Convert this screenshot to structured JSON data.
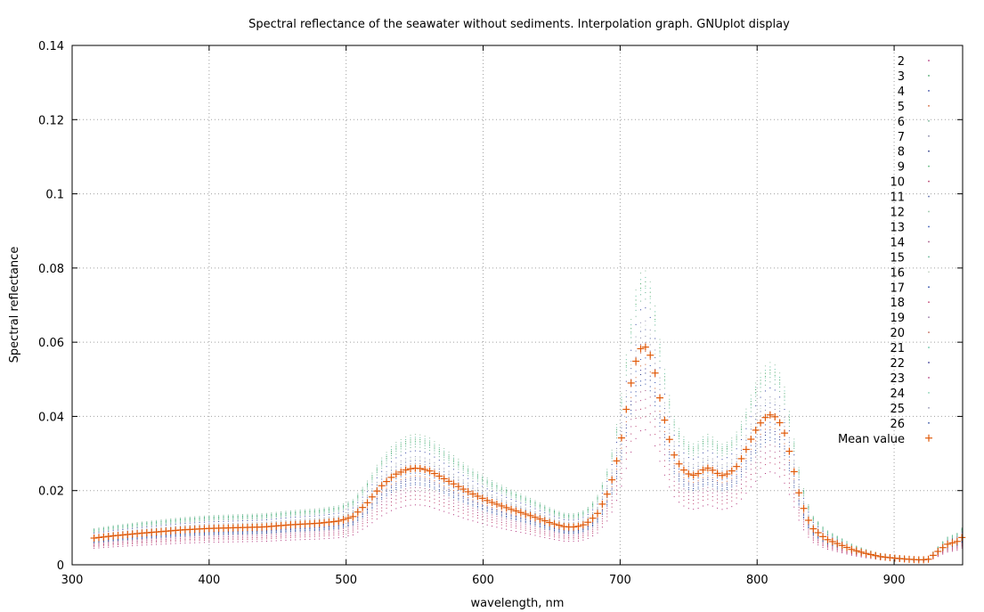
{
  "chart_data": {
    "type": "scatter",
    "title": "Spectral reflectance of the seawater without sediments. Interpolation graph. GNUplot display",
    "xlabel": "wavelength, nm",
    "ylabel": "Spectral reflectance",
    "xlim": [
      300,
      950
    ],
    "ylim": [
      0,
      0.14
    ],
    "x_ticks": [
      300,
      400,
      500,
      600,
      700,
      800,
      900
    ],
    "y_ticks": [
      0,
      0.02,
      0.04,
      0.06,
      0.08,
      0.1,
      0.12,
      0.14
    ],
    "x_tick_labels": [
      "300",
      "400",
      "500",
      "600",
      "700",
      "800",
      "900"
    ],
    "y_tick_labels": [
      "0",
      "0.02",
      "0.04",
      "0.06",
      "0.08",
      "0.1",
      "0.12",
      "0.14"
    ],
    "grid": true,
    "legend_position": "top-right",
    "mean_color": "#e05a0a",
    "x_step_nm": 3.5,
    "mean_series": {
      "name": "Mean value",
      "anchors_x": [
        316,
        330,
        350,
        380,
        400,
        420,
        440,
        460,
        480,
        495,
        505,
        515,
        525,
        535,
        545,
        552,
        560,
        575,
        590,
        605,
        620,
        635,
        650,
        660,
        668,
        675,
        683,
        690,
        695,
        700,
        705,
        710,
        714,
        718,
        722,
        726,
        730,
        735,
        740,
        745,
        750,
        755,
        760,
        765,
        770,
        775,
        780,
        785,
        790,
        795,
        800,
        805,
        810,
        815,
        820,
        825,
        830,
        835,
        840,
        850,
        860,
        870,
        880,
        890,
        900,
        910,
        920,
        925,
        930,
        935,
        940,
        945,
        950
      ],
      "anchors_y": [
        0.0072,
        0.0078,
        0.0085,
        0.0094,
        0.0098,
        0.01,
        0.0102,
        0.0108,
        0.0112,
        0.0118,
        0.013,
        0.0165,
        0.021,
        0.0242,
        0.0258,
        0.0261,
        0.0255,
        0.0225,
        0.0195,
        0.017,
        0.015,
        0.0132,
        0.0112,
        0.0102,
        0.0102,
        0.011,
        0.0135,
        0.0185,
        0.024,
        0.032,
        0.043,
        0.053,
        0.058,
        0.059,
        0.0565,
        0.051,
        0.043,
        0.035,
        0.029,
        0.026,
        0.0245,
        0.024,
        0.0255,
        0.0262,
        0.0248,
        0.024,
        0.0248,
        0.0265,
        0.0295,
        0.0335,
        0.037,
        0.0395,
        0.0405,
        0.0395,
        0.0355,
        0.0285,
        0.02,
        0.014,
        0.01,
        0.007,
        0.0055,
        0.004,
        0.003,
        0.0022,
        0.0018,
        0.0015,
        0.0013,
        0.0015,
        0.003,
        0.0045,
        0.0058,
        0.006,
        0.0075
      ]
    },
    "series": [
      {
        "name": "2",
        "color": "#b0307a"
      },
      {
        "name": "3",
        "color": "#40a060"
      },
      {
        "name": "4",
        "color": "#3040a0"
      },
      {
        "name": "5",
        "color": "#d06030"
      },
      {
        "name": "6",
        "color": "#70b090"
      },
      {
        "name": "7",
        "color": "#8080a0"
      },
      {
        "name": "8",
        "color": "#203080"
      },
      {
        "name": "9",
        "color": "#50b070"
      },
      {
        "name": "10",
        "color": "#b03060"
      },
      {
        "name": "11",
        "color": "#5060a0"
      },
      {
        "name": "12",
        "color": "#90c0a0"
      },
      {
        "name": "13",
        "color": "#3050b0"
      },
      {
        "name": "14",
        "color": "#a05080"
      },
      {
        "name": "15",
        "color": "#60b090"
      },
      {
        "name": "16",
        "color": "#c0d0c0"
      },
      {
        "name": "17",
        "color": "#2040a0"
      },
      {
        "name": "18",
        "color": "#c04070"
      },
      {
        "name": "19",
        "color": "#9070a0"
      },
      {
        "name": "20",
        "color": "#c06050"
      },
      {
        "name": "21",
        "color": "#60c0a0"
      },
      {
        "name": "22",
        "color": "#303090"
      },
      {
        "name": "23",
        "color": "#b04080"
      },
      {
        "name": "24",
        "color": "#80d0b0"
      },
      {
        "name": "25",
        "color": "#9090b0"
      },
      {
        "name": "26",
        "color": "#3050a0"
      }
    ],
    "series_scale_factors": [
      0.62,
      1.3,
      1.18,
      0.92,
      1.22,
      1.05,
      0.88,
      1.28,
      0.72,
      1.08,
      1.35,
      0.95,
      0.8,
      1.25,
      1.1,
      0.85,
      0.68,
      1.02,
      0.98,
      1.32,
      0.9,
      0.76,
      1.27,
      1.12,
      0.83
    ]
  }
}
